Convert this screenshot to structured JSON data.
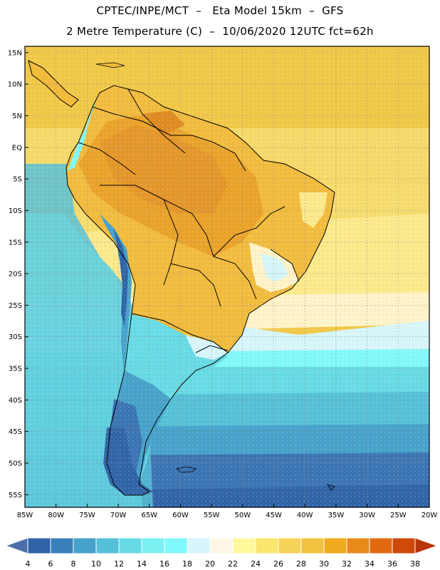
{
  "header": {
    "line1": "CPTEC/INPE/MCT  –   Eta Model 15km  –  GFS",
    "line2": "2 Metre Temperature (C)  –  10/06/2020 12UTC fct=62h"
  },
  "map": {
    "lat_labels": [
      "15N",
      "10N",
      "5N",
      "EQ",
      "5S",
      "10S",
      "15S",
      "20S",
      "25S",
      "30S",
      "35S",
      "40S",
      "45S",
      "50S",
      "55S"
    ],
    "lon_labels": [
      "85W",
      "80W",
      "75W",
      "70W",
      "65W",
      "60W",
      "55W",
      "50W",
      "45W",
      "40W",
      "35W",
      "30W",
      "25W",
      "20W"
    ],
    "extent": {
      "west": -85,
      "east": -20,
      "north": 16,
      "south": -57
    }
  },
  "legend": {
    "ticks": [
      "4",
      "6",
      "8",
      "10",
      "12",
      "14",
      "16",
      "18",
      "20",
      "22",
      "24",
      "26",
      "28",
      "30",
      "32",
      "34",
      "36",
      "38"
    ],
    "colors": [
      "#4a6fa8",
      "#2e63a8",
      "#3a80b8",
      "#45a2cc",
      "#55c0d8",
      "#66dbe6",
      "#7bf0f2",
      "#7ff8fb",
      "#d6f6fb",
      "#fff7e6",
      "#fff89c",
      "#fbe56f",
      "#f6d257",
      "#f1c23f",
      "#efaa1f",
      "#e9891c",
      "#e16a10",
      "#cf4a08",
      "#b8360a"
    ]
  }
}
